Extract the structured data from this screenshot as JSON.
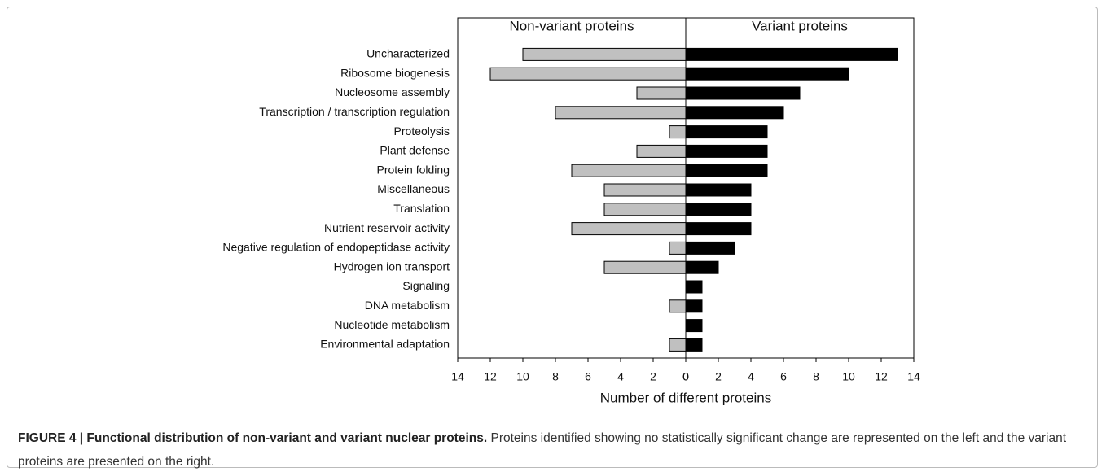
{
  "chart_data": {
    "type": "butterfly",
    "categories": [
      "Uncharacterized",
      "Ribosome biogenesis",
      "Nucleosome assembly",
      "Transcription / transcription regulation",
      "Proteolysis",
      "Plant defense",
      "Protein folding",
      "Miscellaneous",
      "Translation",
      "Nutrient reservoir activity",
      "Negative regulation of endopeptidase activity",
      "Hydrogen ion transport",
      "Signaling",
      "DNA metabolism",
      "Nucleotide metabolism",
      "Environmental adaptation"
    ],
    "series": [
      {
        "name": "Non-variant proteins",
        "color": "#c0c0c0",
        "side": "left",
        "values": [
          10,
          12,
          3,
          8,
          1,
          3,
          7,
          5,
          5,
          7,
          1,
          5,
          0,
          1,
          0,
          1
        ]
      },
      {
        "name": "Variant proteins",
        "color": "#000000",
        "side": "right",
        "values": [
          13,
          10,
          7,
          6,
          5,
          5,
          5,
          4,
          4,
          4,
          3,
          2,
          1,
          1,
          1,
          1
        ]
      }
    ],
    "xlabel": "Number of different proteins",
    "xlim": [
      0,
      14
    ],
    "xticks": [
      0,
      2,
      4,
      6,
      8,
      10,
      12,
      14
    ]
  },
  "caption": {
    "label": "FIGURE 4 | Functional distribution of non-variant and variant nuclear proteins.",
    "text": "Proteins identified showing no statistically significant change are represented on the left and the variant proteins are presented on the right."
  }
}
